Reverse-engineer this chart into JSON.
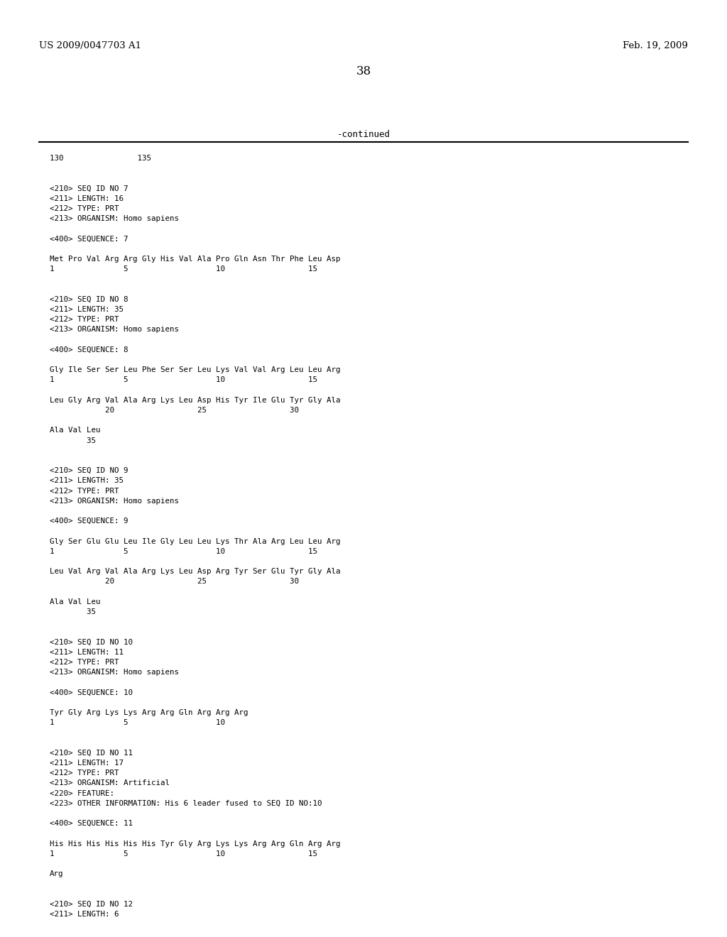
{
  "header_left": "US 2009/0047703 A1",
  "header_right": "Feb. 19, 2009",
  "page_number": "38",
  "continued_label": "-continued",
  "background_color": "#ffffff",
  "text_color": "#000000",
  "content_lines": [
    "130                135",
    "",
    "",
    "<210> SEQ ID NO 7",
    "<211> LENGTH: 16",
    "<212> TYPE: PRT",
    "<213> ORGANISM: Homo sapiens",
    "",
    "<400> SEQUENCE: 7",
    "",
    "Met Pro Val Arg Arg Gly His Val Ala Pro Gln Asn Thr Phe Leu Asp",
    "1               5                   10                  15",
    "",
    "",
    "<210> SEQ ID NO 8",
    "<211> LENGTH: 35",
    "<212> TYPE: PRT",
    "<213> ORGANISM: Homo sapiens",
    "",
    "<400> SEQUENCE: 8",
    "",
    "Gly Ile Ser Ser Leu Phe Ser Ser Leu Lys Val Val Arg Leu Leu Arg",
    "1               5                   10                  15",
    "",
    "Leu Gly Arg Val Ala Arg Lys Leu Asp His Tyr Ile Glu Tyr Gly Ala",
    "            20                  25                  30",
    "",
    "Ala Val Leu",
    "        35",
    "",
    "",
    "<210> SEQ ID NO 9",
    "<211> LENGTH: 35",
    "<212> TYPE: PRT",
    "<213> ORGANISM: Homo sapiens",
    "",
    "<400> SEQUENCE: 9",
    "",
    "Gly Ser Glu Glu Leu Ile Gly Leu Leu Lys Thr Ala Arg Leu Leu Arg",
    "1               5                   10                  15",
    "",
    "Leu Val Arg Val Ala Arg Lys Leu Asp Arg Tyr Ser Glu Tyr Gly Ala",
    "            20                  25                  30",
    "",
    "Ala Val Leu",
    "        35",
    "",
    "",
    "<210> SEQ ID NO 10",
    "<211> LENGTH: 11",
    "<212> TYPE: PRT",
    "<213> ORGANISM: Homo sapiens",
    "",
    "<400> SEQUENCE: 10",
    "",
    "Tyr Gly Arg Lys Lys Arg Arg Gln Arg Arg Arg",
    "1               5                   10",
    "",
    "",
    "<210> SEQ ID NO 11",
    "<211> LENGTH: 17",
    "<212> TYPE: PRT",
    "<213> ORGANISM: Artificial",
    "<220> FEATURE:",
    "<223> OTHER INFORMATION: His 6 leader fused to SEQ ID NO:10",
    "",
    "<400> SEQUENCE: 11",
    "",
    "His His His His His His Tyr Gly Arg Lys Lys Arg Arg Gln Arg Arg",
    "1               5                   10                  15",
    "",
    "Arg",
    "",
    "",
    "<210> SEQ ID NO 12",
    "<211> LENGTH: 6"
  ]
}
